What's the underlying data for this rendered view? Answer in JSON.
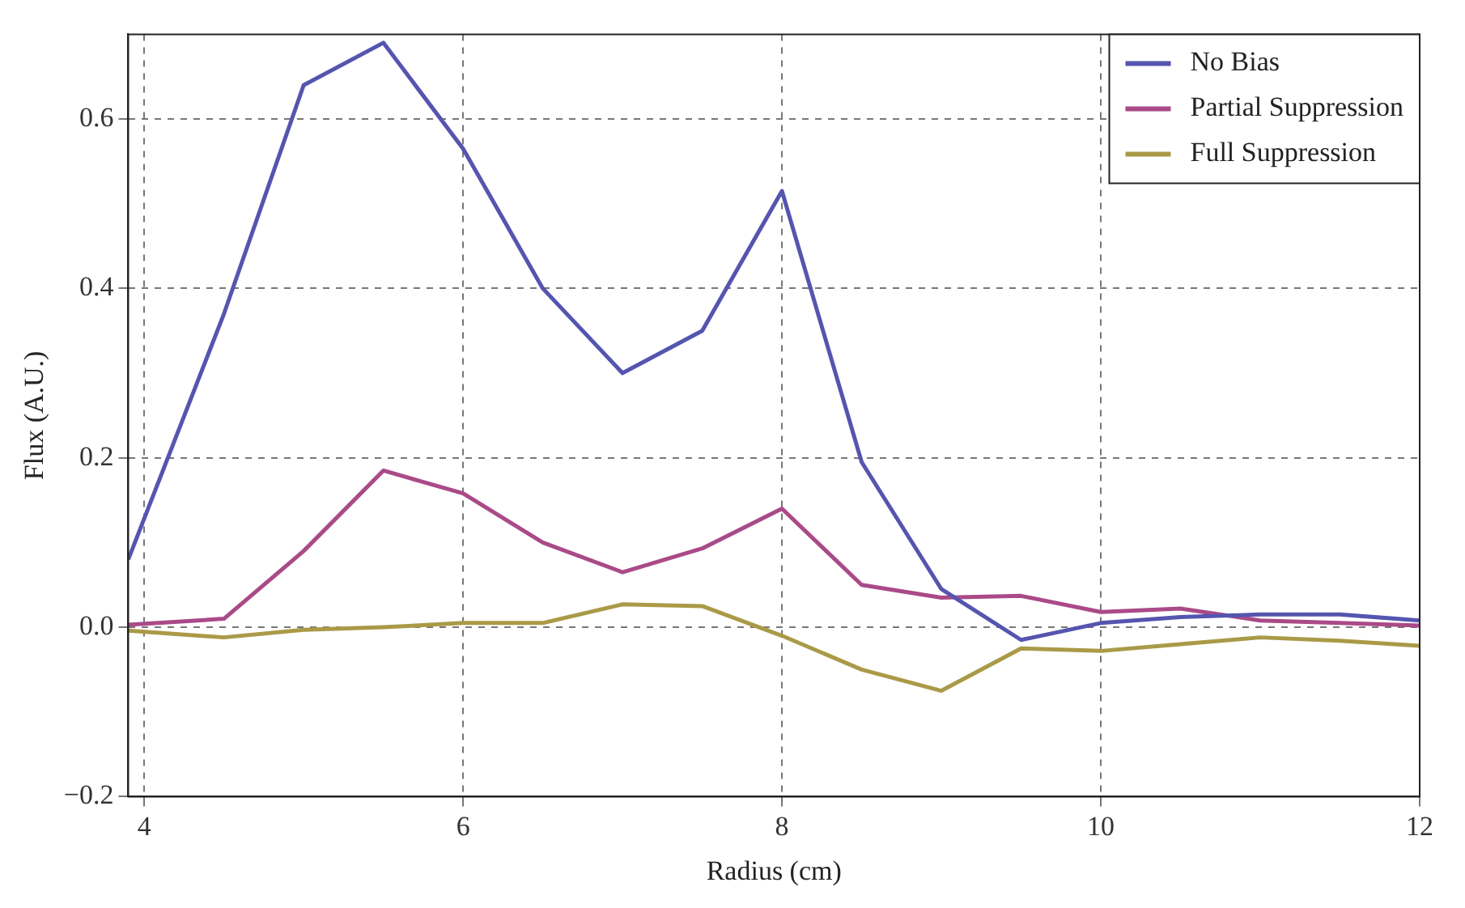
{
  "chart_data": {
    "type": "line",
    "xlabel": "Radius (cm)",
    "ylabel": "Flux (A.U.)",
    "x": [
      3.9,
      4.5,
      5,
      5.5,
      6,
      6.5,
      7,
      7.5,
      8,
      8.5,
      9,
      9.5,
      10,
      10.5,
      11,
      11.5,
      12
    ],
    "series": [
      {
        "name": "No Bias",
        "color": "#5555b0",
        "values": [
          0.08,
          0.37,
          0.64,
          0.69,
          0.565,
          0.4,
          0.3,
          0.35,
          0.515,
          0.195,
          0.045,
          -0.015,
          0.005,
          0.012,
          0.015,
          0.015,
          0.008
        ]
      },
      {
        "name": "Partial Suppression",
        "color": "#aa4a88",
        "values": [
          0.003,
          0.01,
          0.09,
          0.185,
          0.158,
          0.1,
          0.065,
          0.093,
          0.14,
          0.05,
          0.035,
          0.037,
          0.018,
          0.022,
          0.008,
          0.005,
          0.002
        ]
      },
      {
        "name": "Full Suppression",
        "color": "#aa9a48",
        "values": [
          -0.004,
          -0.012,
          -0.003,
          0,
          0.005,
          0.005,
          0.027,
          0.025,
          -0.01,
          -0.05,
          -0.075,
          -0.025,
          -0.028,
          -0.02,
          -0.012,
          -0.016,
          -0.022
        ]
      }
    ],
    "xlim": [
      3.9,
      12
    ],
    "xticks": [
      4,
      6,
      8,
      10,
      12
    ],
    "ylim": [
      -0.2,
      0.7
    ],
    "yticks": [
      {
        "value": -0.2,
        "label": "−0.2"
      },
      {
        "value": 0,
        "label": "0.0"
      },
      {
        "value": 0.2,
        "label": "0.2"
      },
      {
        "value": 0.4,
        "label": "0.4"
      },
      {
        "value": 0.6,
        "label": "0.6"
      }
    ],
    "grid": true,
    "legend": "top right",
    "marker": "none",
    "line_style": "solid"
  }
}
